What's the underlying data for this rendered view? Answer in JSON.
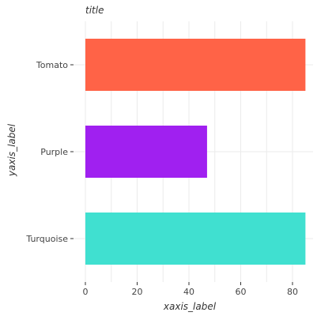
{
  "chart_data": {
    "type": "bar",
    "orientation": "horizontal",
    "title": "title",
    "xlabel": "xaxis_label",
    "ylabel": "yaxis_label",
    "categories": [
      "Turquoise",
      "Purple",
      "Tomato"
    ],
    "values": [
      85,
      47,
      85
    ],
    "colors": [
      "#40e0d0",
      "#a020f0",
      "#ff6347"
    ],
    "xlim": [
      0,
      88
    ],
    "xticks": [
      0,
      20,
      40,
      60,
      80
    ],
    "grid": true
  }
}
